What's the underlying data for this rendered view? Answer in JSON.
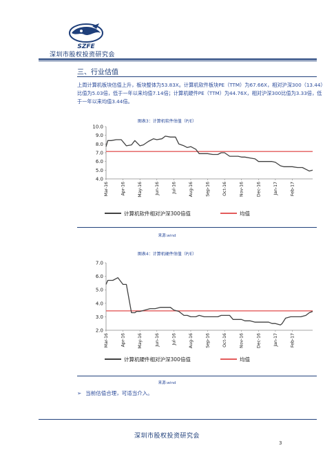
{
  "header": {
    "logo_text": "SZFE",
    "org_name": "深圳市股权投资研究会"
  },
  "section": {
    "title": "三、行业估值",
    "paragraph": "上周计算机板块估值上升，板块整体为53.83X。计算机软件板块PE（TTM）为67.66X，相对沪深300（13.44）比值为5.03倍，低于一年以来均值7.14倍；计算机硬件PE（TTM）为44.76X，相对沪深300比值为3.33倍，低于一年以来均值3.44倍。"
  },
  "colors": {
    "brand": "#1f3f7a",
    "text": "#2a4a9a",
    "series": "#404040",
    "mean": "#e35a5a"
  },
  "charts": [
    {
      "caption": "图表3：计算机软件估值（P/E）",
      "source": "来源:wind",
      "chart_data": {
        "type": "line",
        "yticks": [
          "10.0",
          "9.0",
          "8.0",
          "7.0",
          "6.0",
          "5.0",
          "4.0"
        ],
        "ylim": [
          4.0,
          10.0
        ],
        "xticks": [
          "Mar-16",
          "Apr-16",
          "May-16",
          "Jun-16",
          "Jul-16",
          "Aug-16",
          "Sep-16",
          "Oct-16",
          "Nov-16",
          "Dec-16",
          "Jan-17",
          "Feb-17"
        ],
        "x": [
          0,
          0.1,
          0.3,
          0.6,
          0.9,
          1.2,
          1.5,
          1.7,
          2.0,
          2.2,
          2.5,
          2.8,
          3.0,
          3.3,
          3.5,
          3.8,
          4.1,
          4.3,
          4.6,
          4.8,
          5.0,
          5.3,
          5.5,
          5.8,
          6.0,
          6.3,
          6.6,
          6.8,
          7.0,
          7.3,
          7.5,
          7.8,
          8.0,
          8.2,
          8.5,
          8.8,
          9.0,
          9.3,
          9.6,
          9.8,
          10.0,
          10.3,
          10.5,
          10.8,
          11.0,
          11.3,
          11.6,
          11.8,
          12.0,
          12.2
        ],
        "series": [
          {
            "name": "计算机软件相对沪深300倍值",
            "values": [
              7.7,
              8.4,
              8.4,
              8.5,
              8.5,
              7.8,
              7.9,
              8.4,
              7.8,
              7.9,
              8.3,
              8.6,
              8.5,
              8.6,
              8.9,
              8.8,
              8.8,
              8.0,
              7.8,
              7.6,
              7.7,
              7.4,
              6.9,
              6.9,
              6.9,
              6.8,
              6.8,
              7.0,
              7.0,
              6.6,
              6.6,
              6.6,
              6.5,
              6.5,
              6.4,
              6.3,
              6.0,
              6.0,
              6.0,
              6.0,
              5.9,
              5.5,
              5.4,
              5.4,
              5.4,
              5.3,
              5.3,
              5.1,
              4.9,
              5.0
            ]
          }
        ],
        "mean": {
          "name": "均值",
          "value": 7.14
        }
      }
    },
    {
      "caption": "图表4：计算机硬件估值（P/E）",
      "source": "来源:wind",
      "chart_data": {
        "type": "line",
        "yticks": [
          "7.0",
          "6.0",
          "5.0",
          "4.0",
          "3.0",
          "2.0"
        ],
        "ylim": [
          2.0,
          7.0
        ],
        "xticks": [
          "Mar-16",
          "Apr-16",
          "May-16",
          "Jun-16",
          "Jul-16",
          "Aug-16",
          "Sep-16",
          "Oct-16",
          "Nov-16",
          "Dec-16",
          "Jan-17",
          "Feb-17"
        ],
        "x": [
          0,
          0.1,
          0.4,
          0.7,
          1.0,
          1.2,
          1.5,
          1.7,
          1.8,
          2.0,
          2.3,
          2.6,
          2.9,
          3.2,
          3.5,
          3.8,
          4.0,
          4.3,
          4.6,
          4.8,
          5.0,
          5.3,
          5.5,
          5.8,
          6.0,
          6.3,
          6.6,
          6.8,
          7.0,
          7.3,
          7.5,
          7.8,
          8.0,
          8.2,
          8.5,
          8.8,
          9.0,
          9.3,
          9.6,
          9.8,
          10.0,
          10.3,
          10.4,
          10.6,
          10.9,
          11.2,
          11.5,
          11.8,
          12.0,
          12.2
        ],
        "series": [
          {
            "name": "计算机硬件相对沪深300倍值",
            "values": [
              5.4,
              5.7,
              5.7,
              5.9,
              5.4,
              5.4,
              3.3,
              3.3,
              3.4,
              3.4,
              3.5,
              3.6,
              3.6,
              3.7,
              3.7,
              3.7,
              3.5,
              3.4,
              3.1,
              3.1,
              3.0,
              3.0,
              3.1,
              3.0,
              3.0,
              3.0,
              3.0,
              3.1,
              3.1,
              3.1,
              2.8,
              2.8,
              2.8,
              2.7,
              2.7,
              2.6,
              2.6,
              2.6,
              2.6,
              2.5,
              2.5,
              2.4,
              2.5,
              2.9,
              3.0,
              3.0,
              3.0,
              3.1,
              3.3,
              3.4
            ]
          }
        ],
        "mean": {
          "name": "均值",
          "value": 3.44
        }
      }
    }
  ],
  "conclusion": {
    "bullet": "➢",
    "text": "当前估值合理，可适当介入。"
  },
  "footer": {
    "org_name": "深圳市股权投资研究会",
    "page_number": "3"
  }
}
